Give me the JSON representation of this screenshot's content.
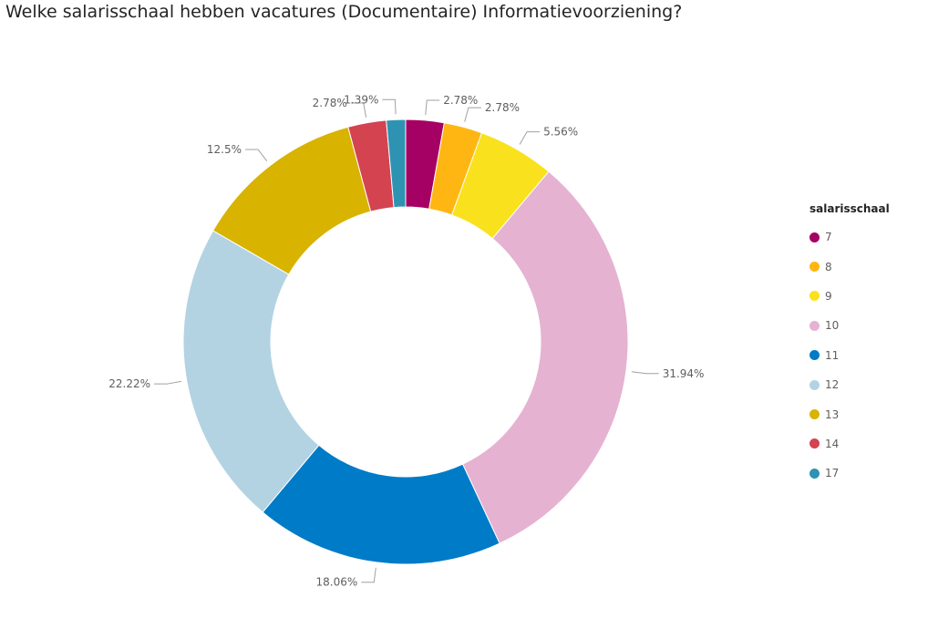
{
  "title": "Welke salarisschaal hebben vacatures (Documentaire) Informatievoorziening?",
  "chart_data": {
    "type": "pie",
    "donut": true,
    "title": "Welke salarisschaal hebben vacatures (Documentaire) Informatievoorziening?",
    "legend_title": "salarisschaal",
    "legend_position": "right",
    "categories": [
      "7",
      "8",
      "9",
      "10",
      "11",
      "12",
      "13",
      "14",
      "17"
    ],
    "values": [
      2.78,
      2.78,
      5.56,
      31.94,
      18.06,
      22.22,
      12.5,
      2.78,
      1.39
    ],
    "labels": [
      "2.78%",
      "2.78%",
      "5.56%",
      "31.94%",
      "18.06%",
      "22.22%",
      "12.5%",
      "2.78%",
      "1.39%"
    ],
    "colors": [
      "#a50063",
      "#ffb612",
      "#f9e11e",
      "#e5b2d1",
      "#007bc7",
      "#b3d3e3",
      "#d8b300",
      "#d44350",
      "#2e93b2"
    ]
  }
}
